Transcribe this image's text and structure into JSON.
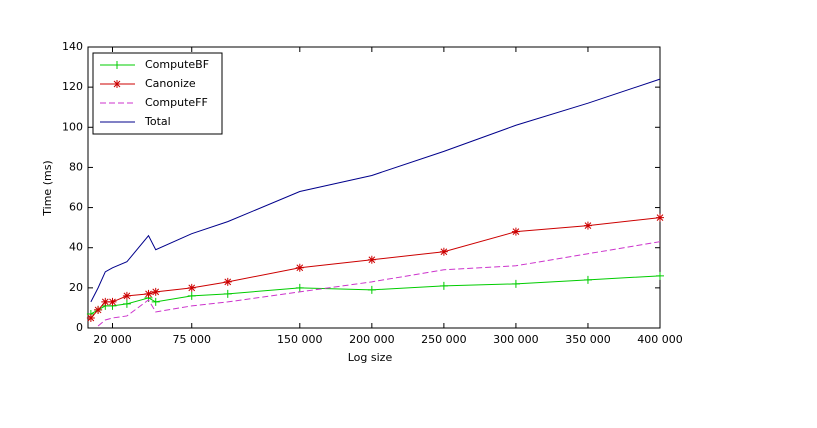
{
  "chart_data": {
    "type": "line",
    "xlabel": "Log size",
    "ylabel": "Time (ms)",
    "x": [
      5000,
      10000,
      15000,
      20000,
      30000,
      45000,
      50000,
      75000,
      100000,
      150000,
      200000,
      250000,
      300000,
      350000,
      400000
    ],
    "series": [
      {
        "name": "ComputeBF",
        "color": "#00cc00",
        "marker": "plus",
        "dash": false,
        "values": [
          7,
          9,
          11,
          11,
          12,
          15,
          13,
          16,
          17,
          20,
          19,
          21,
          22,
          24,
          26
        ]
      },
      {
        "name": "Canonize",
        "color": "#cc0000",
        "marker": "star",
        "dash": false,
        "values": [
          5,
          9,
          13,
          13,
          16,
          17,
          18,
          20,
          23,
          30,
          34,
          38,
          48,
          51,
          55
        ]
      },
      {
        "name": "ComputeFF",
        "color": "#cc33cc",
        "marker": "none",
        "dash": true,
        "values": [
          null,
          1,
          4,
          5,
          6,
          14,
          8,
          11,
          13,
          18,
          23,
          29,
          31,
          37,
          43
        ]
      },
      {
        "name": "Total",
        "color": "#00008b",
        "marker": "none",
        "dash": false,
        "values": [
          13,
          20,
          28,
          30,
          33,
          46,
          39,
          47,
          53,
          68,
          76,
          88,
          101,
          112,
          124
        ]
      }
    ],
    "xlim": [
      3000,
      400000
    ],
    "xticks": [
      {
        "value": 20000,
        "label": "20 000"
      },
      {
        "value": 75000,
        "label": "75 000"
      },
      {
        "value": 150000,
        "label": "150 000"
      },
      {
        "value": 200000,
        "label": "200 000"
      },
      {
        "value": 250000,
        "label": "250 000"
      },
      {
        "value": 300000,
        "label": "300 000"
      },
      {
        "value": 350000,
        "label": "350 000"
      },
      {
        "value": 400000,
        "label": "400 000"
      }
    ],
    "ylim": [
      0,
      140
    ],
    "yticks": [
      0,
      20,
      40,
      60,
      80,
      100,
      120,
      140
    ],
    "grid": false,
    "legend": "top-left"
  }
}
